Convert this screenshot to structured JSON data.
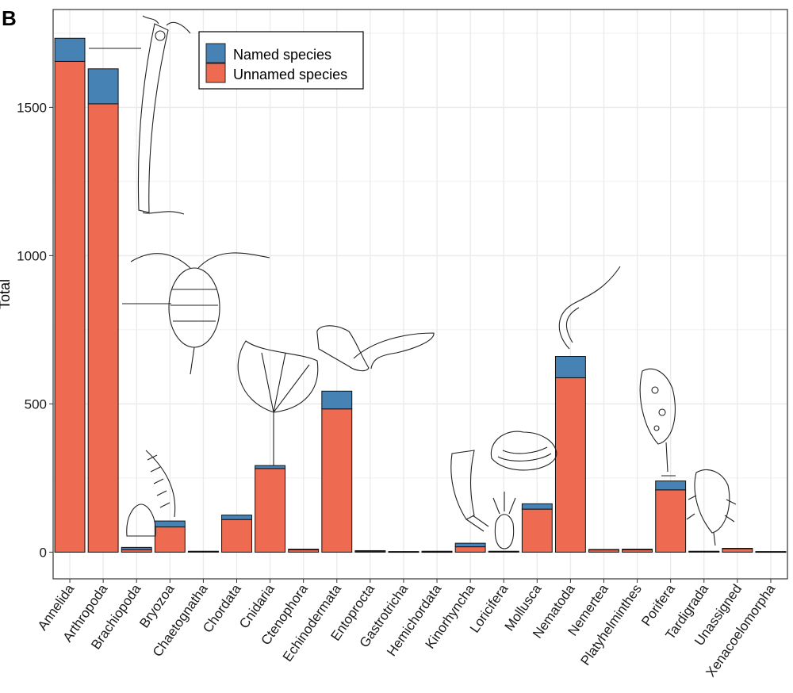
{
  "panel_label": "B",
  "colors": {
    "named": "#4682b4",
    "unnamed": "#ee6a50",
    "grid": "#ebebeb",
    "panel_border": "#333333"
  },
  "chart_data": {
    "type": "bar",
    "stacked": true,
    "title": "",
    "xlabel": "",
    "ylabel": "Total",
    "ylim": [
      -90,
      1830
    ],
    "yticks": [
      0,
      500,
      1000,
      1500
    ],
    "grid": true,
    "legend": {
      "position": "top-left",
      "entries": [
        "Named species",
        "Unnamed species"
      ]
    },
    "categories": [
      "Annelida",
      "Arthropoda",
      "Brachiopoda",
      "Bryozoa",
      "Chaetognatha",
      "Chordata",
      "Cnidaria",
      "Ctenophora",
      "Echinodermata",
      "Entoprocta",
      "Gastrotricha",
      "Hemichordata",
      "Kinorhyncha",
      "Loricifera",
      "Mollusca",
      "Nematoda",
      "Nemertea",
      "Platyhelminthes",
      "Porifera",
      "Tardigrada",
      "Unassigned",
      "Xenacoelomorpha"
    ],
    "series": [
      {
        "name": "Unnamed species",
        "values": [
          1655,
          1512,
          8,
          85,
          2,
          110,
          282,
          8,
          483,
          3,
          1,
          1,
          18,
          2,
          145,
          588,
          8,
          8,
          210,
          2,
          12,
          1
        ]
      },
      {
        "name": "Named species",
        "values": [
          78,
          118,
          8,
          20,
          1,
          15,
          10,
          2,
          60,
          2,
          1,
          2,
          12,
          1,
          18,
          72,
          1,
          2,
          30,
          1,
          1,
          1
        ]
      }
    ]
  }
}
